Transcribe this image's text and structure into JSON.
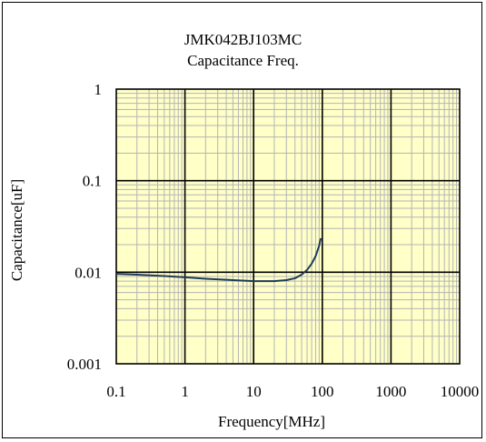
{
  "chart_data": {
    "type": "line",
    "title": "JMK042BJ103MC",
    "subtitle": "Capacitance Freq.",
    "xlabel": "Frequency[MHz]",
    "ylabel": "Capacitance[uF]",
    "x_scale": "log",
    "y_scale": "log",
    "xlim": [
      0.1,
      10000
    ],
    "ylim": [
      0.001,
      1
    ],
    "x_ticks": [
      "0.1",
      "1",
      "10",
      "100",
      "1000",
      "10000"
    ],
    "y_ticks": [
      "0.001",
      "0.01",
      "0.1",
      "1"
    ],
    "grid": true,
    "plot_background": "#ffffc8",
    "series": [
      {
        "color": "#1f3b57",
        "x": [
          0.1,
          0.2,
          0.5,
          1,
          2,
          5,
          10,
          20,
          30,
          40,
          50,
          60,
          70,
          80,
          90,
          95
        ],
        "y": [
          0.0096,
          0.0094,
          0.0091,
          0.0088,
          0.0085,
          0.0082,
          0.008,
          0.008,
          0.0082,
          0.0086,
          0.0094,
          0.0106,
          0.0124,
          0.015,
          0.0195,
          0.0235
        ]
      }
    ]
  }
}
